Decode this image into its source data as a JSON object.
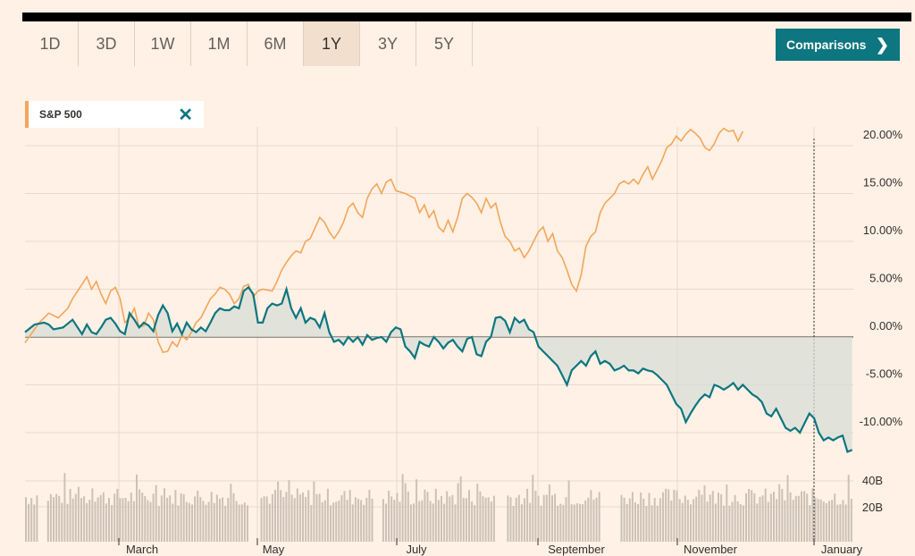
{
  "range_tabs": [
    "1D",
    "3D",
    "1W",
    "1M",
    "6M",
    "1Y",
    "3Y",
    "5Y"
  ],
  "active_range": "1Y",
  "comparisons_label": "Comparisons",
  "comparisons_icon": "chevron-right-icon",
  "legend": {
    "label": "S&P 500",
    "close_icon": "close-icon"
  },
  "colors": {
    "primary": "#0d7680",
    "comparison": "#f2a65a",
    "volume": "#ccc1b7",
    "background": "#fff1e5"
  },
  "chart_data": {
    "type": "line",
    "x_labels": [
      "March",
      "May",
      "July",
      "September",
      "November",
      "January"
    ],
    "y_ticks": [
      "20.00%",
      "15.00%",
      "10.00%",
      "5.00%",
      "0.00%",
      "-5.00%",
      "-10.00%"
    ],
    "volume_ticks": [
      "40B",
      "20B"
    ],
    "y_range_pct": [
      -13,
      22
    ],
    "series": [
      {
        "name": "S&P 500",
        "points": [
          [
            0,
            -0.6
          ],
          [
            3,
            1.5
          ],
          [
            5,
            2.5
          ],
          [
            7,
            2.0
          ],
          [
            9,
            3.0
          ],
          [
            10,
            4.0
          ],
          [
            12,
            5.5
          ],
          [
            13,
            6.3
          ],
          [
            14,
            5.0
          ],
          [
            15,
            5.8
          ],
          [
            16,
            4.5
          ],
          [
            17,
            3.5
          ],
          [
            18,
            4.8
          ],
          [
            19,
            5.2
          ],
          [
            20,
            4.0
          ],
          [
            21,
            1.5
          ],
          [
            22,
            2.0
          ],
          [
            23,
            3.0
          ],
          [
            24,
            1.0
          ],
          [
            25,
            1.2
          ],
          [
            26,
            2.5
          ],
          [
            27,
            1.8
          ],
          [
            28,
            -0.5
          ],
          [
            29,
            -1.6
          ],
          [
            30,
            -1.5
          ],
          [
            31,
            -0.5
          ],
          [
            32,
            -1.0
          ],
          [
            33,
            0.2
          ],
          [
            34,
            -0.3
          ],
          [
            35,
            0.5
          ],
          [
            36,
            1.5
          ],
          [
            37,
            2.0
          ],
          [
            38,
            3.0
          ],
          [
            39,
            4.0
          ],
          [
            40,
            4.5
          ],
          [
            41,
            5.2
          ],
          [
            42,
            5.0
          ],
          [
            43,
            4.5
          ],
          [
            44,
            3.5
          ],
          [
            45,
            4.0
          ],
          [
            46,
            5.3
          ],
          [
            47,
            5.5
          ],
          [
            48,
            4.2
          ],
          [
            49,
            4.8
          ],
          [
            50,
            5.0
          ],
          [
            52,
            4.8
          ],
          [
            53,
            5.8
          ],
          [
            54,
            7.0
          ],
          [
            55,
            7.8
          ],
          [
            56,
            8.5
          ],
          [
            57,
            9.0
          ],
          [
            58,
            8.8
          ],
          [
            59,
            10.0
          ],
          [
            60,
            10.3
          ],
          [
            62,
            12.5
          ],
          [
            63,
            12.0
          ],
          [
            64,
            11.0
          ],
          [
            65,
            10.3
          ],
          [
            66,
            11.0
          ],
          [
            67,
            12.0
          ],
          [
            68,
            13.5
          ],
          [
            69,
            14.0
          ],
          [
            70,
            13.0
          ],
          [
            71,
            12.5
          ],
          [
            72,
            14.5
          ],
          [
            73,
            15.5
          ],
          [
            74,
            16.0
          ],
          [
            75,
            15.0
          ],
          [
            76,
            16.2
          ],
          [
            77,
            16.5
          ],
          [
            78,
            15.3
          ],
          [
            80,
            15.0
          ],
          [
            82,
            14.5
          ],
          [
            83,
            13.0
          ],
          [
            84,
            13.8
          ],
          [
            85,
            12.5
          ],
          [
            86,
            13.2
          ],
          [
            87,
            11.5
          ],
          [
            88,
            11.0
          ],
          [
            89,
            12.2
          ],
          [
            90,
            11.0
          ],
          [
            91,
            12.5
          ],
          [
            92,
            14.5
          ],
          [
            93,
            15.0
          ],
          [
            94,
            14.6
          ],
          [
            95,
            14.0
          ],
          [
            96,
            13.0
          ],
          [
            97,
            14.5
          ],
          [
            98,
            13.5
          ],
          [
            99,
            14.0
          ],
          [
            100,
            12.0
          ],
          [
            101,
            10.5
          ],
          [
            102,
            10.0
          ],
          [
            103,
            9.0
          ],
          [
            104,
            9.3
          ],
          [
            105,
            8.3
          ],
          [
            106,
            9.0
          ],
          [
            107,
            10.0
          ],
          [
            108,
            11.0
          ],
          [
            109,
            11.5
          ],
          [
            110,
            10.0
          ],
          [
            111,
            10.8
          ],
          [
            112,
            9.0
          ],
          [
            113,
            8.3
          ],
          [
            114,
            7.0
          ],
          [
            115,
            5.5
          ],
          [
            116,
            4.8
          ],
          [
            117,
            6.5
          ],
          [
            118,
            9.5
          ],
          [
            119,
            10.5
          ],
          [
            120,
            11.0
          ],
          [
            121,
            13.0
          ],
          [
            122,
            14.0
          ],
          [
            123,
            14.5
          ],
          [
            124,
            15.0
          ],
          [
            125,
            16.0
          ],
          [
            126,
            16.3
          ],
          [
            127,
            16.0
          ],
          [
            128,
            16.5
          ],
          [
            129,
            16.0
          ],
          [
            130,
            17.0
          ],
          [
            131,
            17.8
          ],
          [
            132,
            16.5
          ],
          [
            133,
            17.5
          ],
          [
            134,
            18.5
          ],
          [
            135,
            19.8
          ],
          [
            136,
            20.2
          ],
          [
            137,
            21.0
          ],
          [
            138,
            20.5
          ],
          [
            139,
            21.2
          ],
          [
            140,
            21.7
          ],
          [
            141,
            21.3
          ],
          [
            142,
            20.8
          ],
          [
            143,
            19.8
          ],
          [
            144,
            19.5
          ],
          [
            145,
            20.2
          ],
          [
            146,
            21.3
          ],
          [
            147,
            21.8
          ],
          [
            148,
            21.5
          ],
          [
            149,
            21.6
          ],
          [
            150,
            20.5
          ],
          [
            151,
            21.5
          ]
        ]
      },
      {
        "name": "",
        "points": [
          [
            0,
            0.5
          ],
          [
            2,
            1.3
          ],
          [
            4,
            1.5
          ],
          [
            5,
            1.3
          ],
          [
            6,
            0.8
          ],
          [
            8,
            1.0
          ],
          [
            10,
            1.8
          ],
          [
            12,
            0.3
          ],
          [
            13,
            1.3
          ],
          [
            14,
            0.5
          ],
          [
            15,
            0.3
          ],
          [
            16,
            1.0
          ],
          [
            17,
            1.8
          ],
          [
            18,
            2.0
          ],
          [
            19,
            1.4
          ],
          [
            20,
            0.6
          ],
          [
            21,
            0.3
          ],
          [
            22,
            2.5
          ],
          [
            23,
            1.8
          ],
          [
            24,
            1.0
          ],
          [
            25,
            1.5
          ],
          [
            26,
            1.2
          ],
          [
            27,
            0.6
          ],
          [
            28,
            2.3
          ],
          [
            29,
            3.3
          ],
          [
            30,
            2.5
          ],
          [
            31,
            0.6
          ],
          [
            32,
            1.4
          ],
          [
            33,
            0.3
          ],
          [
            34,
            1.5
          ],
          [
            35,
            0.8
          ],
          [
            36,
            0.5
          ],
          [
            37,
            1.0
          ],
          [
            38,
            0.6
          ],
          [
            39,
            1.5
          ],
          [
            40,
            2.5
          ],
          [
            41,
            3.0
          ],
          [
            42,
            2.8
          ],
          [
            43,
            2.8
          ],
          [
            44,
            3.2
          ],
          [
            45,
            3.0
          ],
          [
            46,
            4.8
          ],
          [
            47,
            5.2
          ],
          [
            48,
            4.5
          ],
          [
            49,
            1.5
          ],
          [
            50,
            1.5
          ],
          [
            51,
            3.0
          ],
          [
            52,
            3.5
          ],
          [
            53,
            3.3
          ],
          [
            54,
            3.5
          ],
          [
            55,
            5.0
          ],
          [
            56,
            3.0
          ],
          [
            57,
            2.0
          ],
          [
            58,
            3.0
          ],
          [
            59,
            1.5
          ],
          [
            60,
            2.0
          ],
          [
            61,
            1.8
          ],
          [
            62,
            1.0
          ],
          [
            63,
            2.5
          ],
          [
            64,
            0.5
          ],
          [
            65,
            -0.5
          ],
          [
            66,
            -0.3
          ],
          [
            67,
            -0.8
          ],
          [
            68,
            0.0
          ],
          [
            69,
            -0.5
          ],
          [
            70,
            0.0
          ],
          [
            71,
            -0.8
          ],
          [
            72,
            0.2
          ],
          [
            73,
            -0.3
          ],
          [
            74,
            -0.1
          ],
          [
            75,
            0.0
          ],
          [
            76,
            -0.5
          ],
          [
            77,
            0.5
          ],
          [
            78,
            1.0
          ],
          [
            79,
            0.8
          ],
          [
            80,
            -1.0
          ],
          [
            81,
            -1.5
          ],
          [
            82,
            -2.2
          ],
          [
            83,
            -0.5
          ],
          [
            84,
            -0.8
          ],
          [
            85,
            -1.0
          ],
          [
            86,
            0.0
          ],
          [
            87,
            -0.5
          ],
          [
            88,
            -1.2
          ],
          [
            89,
            -0.6
          ],
          [
            90,
            -0.3
          ],
          [
            91,
            -1.0
          ],
          [
            92,
            -1.5
          ],
          [
            93,
            -0.2
          ],
          [
            94,
            0.0
          ],
          [
            95,
            -1.8
          ],
          [
            96,
            -2.0
          ],
          [
            97,
            -0.5
          ],
          [
            98,
            0.0
          ],
          [
            99,
            2.0
          ],
          [
            100,
            2.1
          ],
          [
            101,
            1.7
          ],
          [
            102,
            0.5
          ],
          [
            103,
            2.0
          ],
          [
            104,
            1.5
          ],
          [
            105,
            1.8
          ],
          [
            106,
            0.8
          ],
          [
            107,
            0.5
          ],
          [
            108,
            -1.0
          ],
          [
            109,
            -1.5
          ],
          [
            110,
            -2.0
          ],
          [
            111,
            -2.5
          ],
          [
            112,
            -3.0
          ],
          [
            113,
            -4.0
          ],
          [
            114,
            -5.0
          ],
          [
            115,
            -3.5
          ],
          [
            116,
            -3.0
          ],
          [
            117,
            -2.5
          ],
          [
            118,
            -3.0
          ],
          [
            119,
            -2.0
          ],
          [
            120,
            -1.5
          ],
          [
            121,
            -2.8
          ],
          [
            122,
            -2.5
          ],
          [
            123,
            -2.8
          ],
          [
            124,
            -3.5
          ],
          [
            125,
            -3.3
          ],
          [
            126,
            -3.0
          ],
          [
            127,
            -3.5
          ],
          [
            128,
            -3.5
          ],
          [
            129,
            -3.8
          ],
          [
            130,
            -3.3
          ],
          [
            131,
            -3.5
          ],
          [
            132,
            -3.6
          ],
          [
            133,
            -4.0
          ],
          [
            134,
            -4.5
          ],
          [
            135,
            -5.0
          ],
          [
            136,
            -6.0
          ],
          [
            137,
            -7.0
          ],
          [
            138,
            -7.5
          ],
          [
            139,
            -8.9
          ],
          [
            140,
            -8.0
          ],
          [
            141,
            -7.2
          ],
          [
            142,
            -6.5
          ],
          [
            143,
            -6.0
          ],
          [
            144,
            -6.3
          ],
          [
            145,
            -5.0
          ],
          [
            146,
            -5.2
          ],
          [
            147,
            -5.5
          ],
          [
            148,
            -5.2
          ],
          [
            149,
            -4.8
          ],
          [
            150,
            -5.5
          ],
          [
            151,
            -5.0
          ],
          [
            152,
            -5.5
          ],
          [
            153,
            -6.0
          ],
          [
            154,
            -6.3
          ],
          [
            155,
            -6.8
          ],
          [
            156,
            -8.0
          ],
          [
            157,
            -8.3
          ],
          [
            158,
            -7.5
          ],
          [
            159,
            -8.5
          ],
          [
            160,
            -9.5
          ],
          [
            161,
            -9.8
          ],
          [
            162,
            -9.5
          ],
          [
            163,
            -10.0
          ],
          [
            164,
            -9.0
          ],
          [
            165,
            -8.0
          ],
          [
            166,
            -8.5
          ],
          [
            167,
            -10.0
          ],
          [
            168,
            -10.8
          ],
          [
            169,
            -10.5
          ],
          [
            170,
            -10.8
          ],
          [
            171,
            -10.5
          ],
          [
            172,
            -10.3
          ],
          [
            173,
            -12.0
          ],
          [
            174,
            -11.8
          ]
        ]
      }
    ]
  }
}
